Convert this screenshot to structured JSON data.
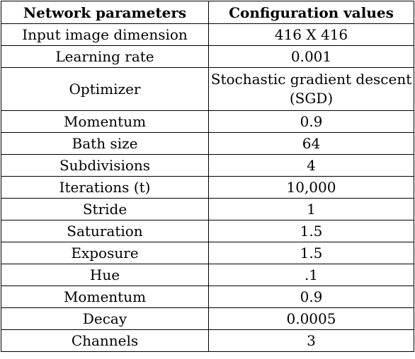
{
  "table": {
    "headers": [
      "Network parameters",
      "Configuration values"
    ],
    "rows": [
      {
        "parameter": "Input image dimension",
        "value": "416 X 416"
      },
      {
        "parameter": "Learning rate",
        "value": "0.001"
      },
      {
        "parameter": "Optimizer",
        "value": "Stochastic gradient descent (SGD)"
      },
      {
        "parameter": "Momentum",
        "value": "0.9"
      },
      {
        "parameter": "Bath size",
        "value": "64"
      },
      {
        "parameter": "Subdivisions",
        "value": "4"
      },
      {
        "parameter": "Iterations (t)",
        "value": "10,000"
      },
      {
        "parameter": "Stride",
        "value": "1"
      },
      {
        "parameter": "Saturation",
        "value": "1.5"
      },
      {
        "parameter": "Exposure",
        "value": "1.5"
      },
      {
        "parameter": "Hue",
        "value": ".1"
      },
      {
        "parameter": "Momentum",
        "value": "0.9"
      },
      {
        "parameter": "Decay",
        "value": "0.0005"
      },
      {
        "parameter": "Channels",
        "value": "3"
      }
    ]
  }
}
